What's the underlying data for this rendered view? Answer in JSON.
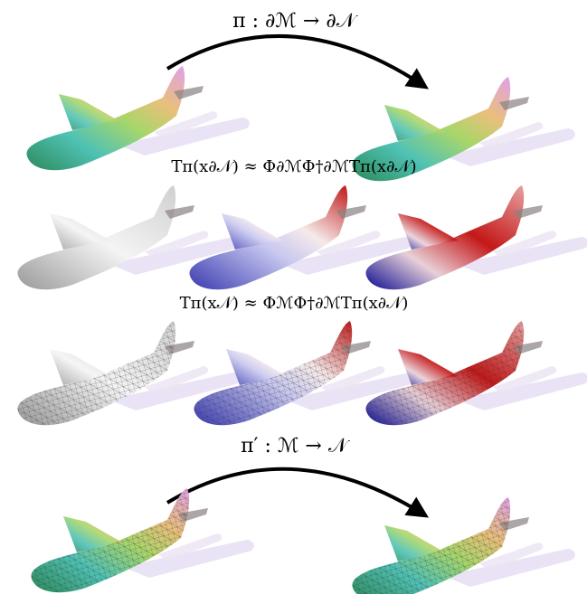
{
  "labels": [
    "π : ∂ℳ → ∂𝒩",
    "Tπ(x∂𝒩) ≈ Φ∂ℳΦ†∂ℳTπ(x∂𝒩)",
    "Tπ(x𝒩) ≈ ΦℳΦ†∂ℳTπ(x∂𝒩)",
    "π′ : ℳ → 𝒩"
  ]
}
